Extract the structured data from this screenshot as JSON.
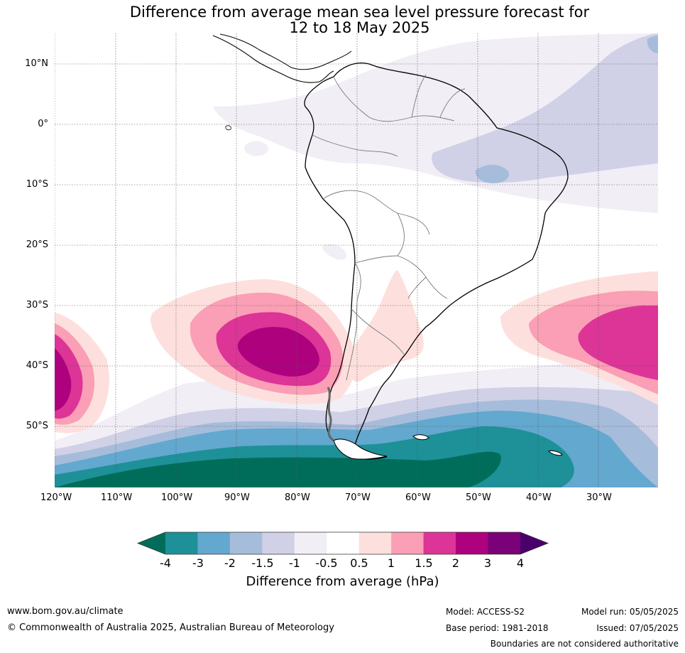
{
  "title_line1": "Difference from average mean sea level pressure forecast for",
  "title_line2": "12 to 18 May 2025",
  "lat_labels": [
    "10°N",
    "0°",
    "10°S",
    "20°S",
    "30°S",
    "40°S",
    "50°S"
  ],
  "lon_labels": [
    "120°W",
    "110°W",
    "100°W",
    "90°W",
    "80°W",
    "70°W",
    "60°W",
    "50°W",
    "40°W",
    "30°W"
  ],
  "colorbar": {
    "ticks": [
      "-4",
      "-3",
      "-2",
      "-1.5",
      "-1",
      "-0.5",
      "0.5",
      "1",
      "1.5",
      "2",
      "3",
      "4"
    ],
    "colors": [
      "#1e9098",
      "#63a8cf",
      "#a6bcdb",
      "#d0d1e6",
      "#f1eef6",
      "#ffffff",
      "#fde0dd",
      "#fa9fb5",
      "#dd3497",
      "#ae017e",
      "#7a0177"
    ],
    "under_color": "#006d5b",
    "over_color": "#49006a",
    "label": "Difference from average (hPa)"
  },
  "footer": {
    "url": "www.bom.gov.au/climate",
    "copyright": "© Commonwealth of Australia 2025, Australian Bureau of Meteorology",
    "model": "Model: ACCESS-S2",
    "base_period": "Base period: 1981-2018",
    "model_run": "Model run: 05/05/2025",
    "issued": "Issued: 07/05/2025",
    "disclaimer": "Boundaries are not considered authoritative"
  }
}
